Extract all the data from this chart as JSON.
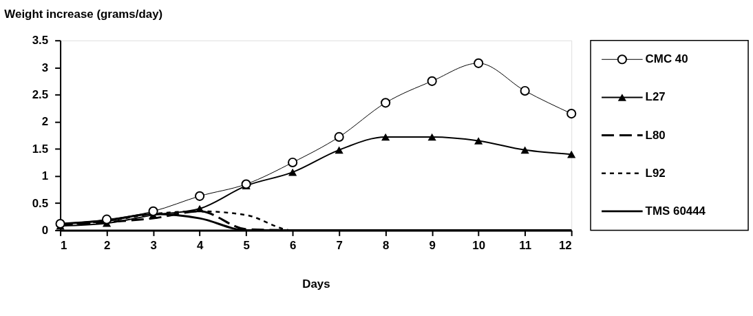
{
  "chart_data": {
    "type": "line",
    "ylabel": "Weight increase (grams/day)",
    "xlabel": "Days",
    "x": [
      1,
      2,
      3,
      4,
      5,
      6,
      7,
      8,
      9,
      10,
      11,
      12
    ],
    "xlim": [
      1,
      12
    ],
    "xticks": [
      1,
      2,
      3,
      4,
      5,
      6,
      7,
      8,
      9,
      10,
      11,
      12
    ],
    "ylim": [
      0,
      3.5
    ],
    "yticks": [
      0,
      0.5,
      1,
      1.5,
      2,
      2.5,
      3,
      3.5
    ],
    "grid": false,
    "legend": "right",
    "series": [
      {
        "name": "CMC 40",
        "color": "#000000",
        "marker": "circle",
        "line_style": "solid",
        "values": [
          0.12,
          0.2,
          0.35,
          0.63,
          0.85,
          1.25,
          1.72,
          2.35,
          2.75,
          3.08,
          2.57,
          2.15
        ]
      },
      {
        "name": "L27",
        "color": "#000000",
        "marker": "triangle",
        "line_style": "solid",
        "values": [
          0.08,
          0.13,
          0.28,
          0.4,
          0.82,
          1.07,
          1.48,
          1.72,
          1.72,
          1.65,
          1.48,
          1.4
        ]
      },
      {
        "name": "L80",
        "color": "#000000",
        "marker": "none",
        "line_style": "dashed",
        "values": [
          0.1,
          0.15,
          0.22,
          0.35,
          0.02,
          0,
          0,
          0,
          0,
          0,
          0,
          0
        ]
      },
      {
        "name": "L92",
        "color": "#000000",
        "marker": "none",
        "line_style": "dotted",
        "values": [
          0.1,
          0.17,
          0.3,
          0.35,
          0.28,
          0,
          0,
          0,
          0,
          0,
          0,
          0
        ]
      },
      {
        "name": "TMS 60444",
        "color": "#000000",
        "marker": "none",
        "line_style": "solid",
        "values": [
          0.12,
          0.18,
          0.3,
          0.22,
          0,
          0,
          0,
          0,
          0,
          0,
          0,
          0
        ]
      }
    ]
  }
}
